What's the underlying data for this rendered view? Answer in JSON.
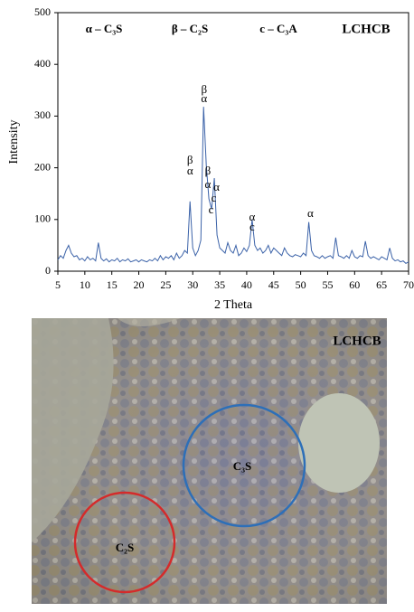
{
  "chart_data": {
    "type": "line",
    "x_label": "2 Theta",
    "y_label": "Intensity",
    "phase_labels": [
      "α – C₃S",
      "β – C₂S",
      "c – C₃A"
    ],
    "sample_label": "LCHCB",
    "xlim": [
      5,
      70
    ],
    "ylim": [
      0,
      500
    ],
    "xticks": [
      5,
      10,
      15,
      20,
      25,
      30,
      35,
      40,
      45,
      50,
      55,
      60,
      65,
      70
    ],
    "yticks": [
      0,
      100,
      200,
      300,
      400,
      500
    ],
    "series": [
      {
        "color": "#3b62a8",
        "x": [
          5,
          5.5,
          6,
          6.5,
          7,
          7.5,
          8,
          8.5,
          9,
          9.5,
          10,
          10.5,
          11,
          11.5,
          12,
          12.5,
          13,
          13.5,
          14,
          14.5,
          15,
          15.5,
          16,
          16.5,
          17,
          17.5,
          18,
          18.5,
          19,
          19.5,
          20,
          20.5,
          21,
          21.5,
          22,
          22.5,
          23,
          23.5,
          24,
          24.5,
          25,
          25.5,
          26,
          26.5,
          27,
          27.5,
          28,
          28.5,
          29,
          29.5,
          30,
          30.5,
          31,
          31.5,
          32,
          32.5,
          33,
          33.5,
          34,
          34.5,
          35,
          35.5,
          36,
          36.5,
          37,
          37.5,
          38,
          38.5,
          39,
          39.5,
          40,
          40.5,
          41,
          41.5,
          42,
          42.5,
          43,
          43.5,
          44,
          44.5,
          45,
          45.5,
          46,
          46.5,
          47,
          47.5,
          48,
          48.5,
          49,
          49.5,
          50,
          50.5,
          51,
          51.5,
          52,
          52.5,
          53,
          53.5,
          54,
          54.5,
          55,
          55.5,
          56,
          56.5,
          57,
          57.5,
          58,
          58.5,
          59,
          59.5,
          60,
          60.5,
          61,
          61.5,
          62,
          62.5,
          63,
          63.5,
          64,
          64.5,
          65,
          65.5,
          66,
          66.5,
          67,
          67.5,
          68,
          68.5,
          69,
          69.5,
          70
        ],
        "values": [
          22,
          30,
          25,
          40,
          50,
          35,
          28,
          30,
          22,
          25,
          20,
          28,
          22,
          25,
          20,
          55,
          25,
          20,
          24,
          18,
          22,
          20,
          25,
          18,
          22,
          20,
          24,
          18,
          20,
          22,
          18,
          22,
          20,
          18,
          22,
          20,
          25,
          20,
          30,
          22,
          28,
          25,
          30,
          22,
          35,
          25,
          30,
          40,
          35,
          135,
          45,
          30,
          40,
          60,
          318,
          205,
          140,
          120,
          180,
          70,
          45,
          40,
          35,
          55,
          40,
          35,
          50,
          30,
          35,
          45,
          38,
          50,
          100,
          50,
          40,
          45,
          35,
          40,
          50,
          35,
          45,
          40,
          35,
          30,
          45,
          35,
          30,
          28,
          32,
          30,
          28,
          35,
          30,
          95,
          40,
          30,
          28,
          25,
          30,
          25,
          28,
          30,
          25,
          65,
          30,
          28,
          25,
          30,
          25,
          40,
          28,
          25,
          30,
          28,
          58,
          30,
          25,
          28,
          25,
          22,
          28,
          25,
          22,
          45,
          25,
          20,
          22,
          18,
          20,
          15,
          18
        ]
      }
    ],
    "annotations": [
      {
        "text": "β",
        "x": 29.5,
        "y": 213
      },
      {
        "text": "α",
        "x": 29.5,
        "y": 192
      },
      {
        "text": "β",
        "x": 32.1,
        "y": 350
      },
      {
        "text": "α",
        "x": 32.1,
        "y": 332
      },
      {
        "text": "β",
        "x": 32.8,
        "y": 192
      },
      {
        "text": "α",
        "x": 32.8,
        "y": 166
      },
      {
        "text": "α",
        "x": 34.4,
        "y": 161
      },
      {
        "text": "c",
        "x": 33.9,
        "y": 140
      },
      {
        "text": "c",
        "x": 33.4,
        "y": 117
      },
      {
        "text": "α",
        "x": 41,
        "y": 103
      },
      {
        "text": "c",
        "x": 41,
        "y": 84
      },
      {
        "text": "α",
        "x": 51.8,
        "y": 110
      }
    ]
  },
  "micrograph": {
    "label": "LCHCB",
    "regions": [
      {
        "label": "C₃S",
        "color": "#2d6fb8"
      },
      {
        "label": "C₂S",
        "color": "#d42b2b"
      }
    ]
  }
}
